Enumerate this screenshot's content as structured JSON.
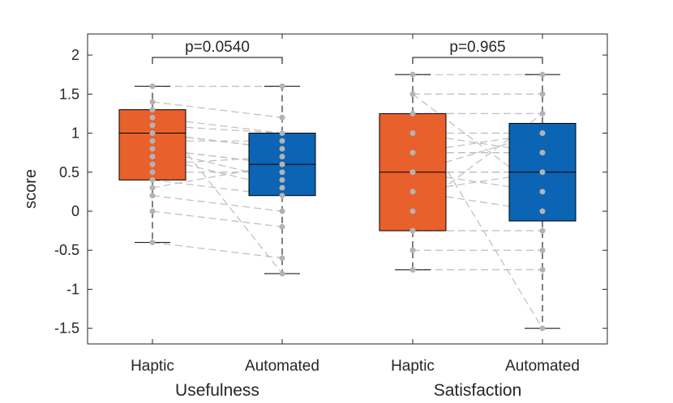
{
  "chart_data": {
    "type": "box",
    "ylabel": "score",
    "ylim": [
      -1.7,
      2.27
    ],
    "yticks": [
      2,
      1.5,
      1,
      0.5,
      0,
      -0.5,
      -1,
      -1.5
    ],
    "ytick_labels": [
      "2",
      "1.5",
      "1",
      "0.5",
      "0",
      "-0.5",
      "-1",
      "-1.5"
    ],
    "categories": [
      "Haptic",
      "Automated",
      "Haptic",
      "Automated"
    ],
    "groups": [
      "Usefulness",
      "Satisfaction"
    ],
    "colors": {
      "haptic": "#E8602C",
      "automated": "#0C64B4",
      "point": "#B3B3B3",
      "line": "#BDBDBD"
    },
    "boxes": [
      {
        "name": "Usefulness-Haptic",
        "q1": 0.4,
        "median": 1.0,
        "q3": 1.3,
        "whisker_low": -0.4,
        "whisker_high": 1.6,
        "points": [
          1.6,
          1.4,
          1.2,
          1.0,
          1.0,
          0.8,
          0.8,
          0.4,
          0.2,
          0.0,
          -0.4,
          1.3,
          0.9,
          0.6,
          0.5,
          0.3,
          1.1,
          0.7,
          1.0,
          0.8
        ]
      },
      {
        "name": "Usefulness-Automated",
        "q1": 0.2,
        "median": 0.6,
        "q3": 1.0,
        "whisker_low": -0.8,
        "whisker_high": 1.6,
        "points": [
          1.6,
          1.2,
          1.0,
          0.8,
          0.8,
          0.6,
          0.4,
          0.2,
          0.0,
          -0.2,
          -0.6,
          -0.8,
          0.9,
          0.7,
          0.5,
          0.6,
          1.0,
          0.3,
          0.8,
          0.6
        ]
      },
      {
        "name": "Satisfaction-Haptic",
        "q1": -0.25,
        "median": 0.5,
        "q3": 1.25,
        "whisker_low": -0.75,
        "whisker_high": 1.75,
        "points": [
          1.75,
          1.5,
          1.25,
          1.0,
          0.75,
          0.5,
          0.5,
          0.25,
          -0.25,
          -0.5,
          -0.75,
          1.25,
          0.75,
          0.5,
          1.0,
          0.0,
          1.5,
          0.25,
          0.5,
          0.75
        ]
      },
      {
        "name": "Satisfaction-Automated",
        "q1": -0.125,
        "median": 0.5,
        "q3": 1.125,
        "whisker_low": -1.5,
        "whisker_high": 1.75,
        "points": [
          1.75,
          1.5,
          1.25,
          1.0,
          0.75,
          0.5,
          0.25,
          0.0,
          -0.25,
          -0.5,
          -0.75,
          -1.5,
          1.0,
          0.5,
          0.75,
          1.25,
          0.25,
          0.5,
          1.0,
          0.75
        ]
      }
    ],
    "pairs": [
      {
        "from": 0,
        "to": 1
      },
      {
        "from": 2,
        "to": 3
      }
    ],
    "annotations": [
      {
        "label": "p=0.0540",
        "between": [
          0,
          1
        ],
        "y": 2.0
      },
      {
        "label": "p=0.965",
        "between": [
          2,
          3
        ],
        "y": 2.0
      }
    ]
  }
}
